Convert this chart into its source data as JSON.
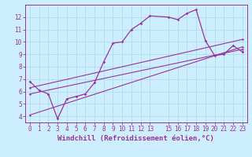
{
  "bg_color": "#cceeff",
  "grid_color": "#b0d8e8",
  "line_color": "#993399",
  "xlim": [
    -0.5,
    23.5
  ],
  "ylim": [
    3.5,
    13.0
  ],
  "xticks": [
    0,
    1,
    2,
    3,
    4,
    5,
    6,
    7,
    8,
    9,
    10,
    11,
    12,
    13,
    15,
    16,
    17,
    18,
    19,
    20,
    21,
    22,
    23
  ],
  "yticks": [
    4,
    5,
    6,
    7,
    8,
    9,
    10,
    11,
    12
  ],
  "xlabel": "Windchill (Refroidissement éolien,°C)",
  "line1_x": [
    0,
    1,
    2,
    3,
    4,
    5,
    6,
    7,
    8,
    9,
    10,
    11,
    12,
    13,
    15,
    16,
    17,
    18,
    19,
    20,
    21,
    22,
    23
  ],
  "line1_y": [
    6.8,
    6.1,
    5.8,
    3.8,
    5.4,
    5.6,
    5.8,
    6.7,
    8.4,
    9.9,
    10.0,
    11.0,
    11.5,
    12.1,
    12.0,
    11.8,
    12.3,
    12.6,
    10.1,
    8.9,
    9.0,
    9.7,
    9.2
  ],
  "line2_x": [
    0,
    23
  ],
  "line2_y": [
    5.8,
    9.4
  ],
  "line3_x": [
    0,
    23
  ],
  "line3_y": [
    4.1,
    9.6
  ],
  "line4_x": [
    0,
    23
  ],
  "line4_y": [
    6.3,
    10.2
  ],
  "tick_fontsize": 5.5,
  "xlabel_fontsize": 6.5
}
